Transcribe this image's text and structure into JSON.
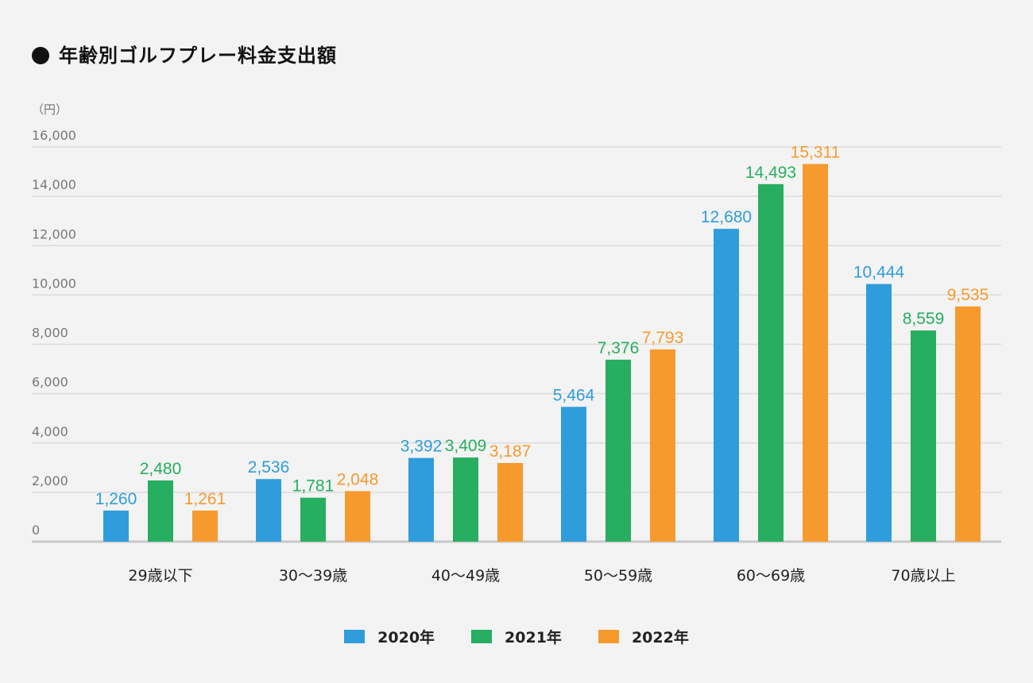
{
  "chart_data": {
    "type": "bar",
    "title": "年齢別ゴルフプレー料金支出額",
    "ylabel": "（円）",
    "xlabel": "",
    "ylim": [
      0,
      16000
    ],
    "yticks": [
      0,
      2000,
      4000,
      6000,
      8000,
      10000,
      12000,
      14000,
      16000
    ],
    "ytick_labels": [
      "0",
      "2,000",
      "4,000",
      "6,000",
      "8,000",
      "10,000",
      "12,000",
      "14,000",
      "16,000"
    ],
    "grid": true,
    "legend_position": "bottom-center",
    "categories": [
      "29歳以下",
      "30〜39歳",
      "40〜49歳",
      "50〜59歳",
      "60〜69歳",
      "70歳以上"
    ],
    "series": [
      {
        "name": "2020年",
        "color": "#2f9ddb",
        "values": [
          1260,
          2536,
          3392,
          5464,
          12680,
          10444
        ],
        "labels": [
          "1,260",
          "2,536",
          "3,392",
          "5,464",
          "12,680",
          "10,444"
        ]
      },
      {
        "name": "2021年",
        "color": "#27ae60",
        "values": [
          2480,
          1781,
          3409,
          7376,
          14493,
          8559
        ],
        "labels": [
          "2,480",
          "1,781",
          "3,409",
          "7,376",
          "14,493",
          "8,559"
        ]
      },
      {
        "name": "2022年",
        "color": "#f79a2e",
        "values": [
          1261,
          2048,
          3187,
          7793,
          15311,
          9535
        ],
        "labels": [
          "1,261",
          "2,048",
          "3,187",
          "7,793",
          "15,311",
          "9,535"
        ]
      }
    ]
  }
}
